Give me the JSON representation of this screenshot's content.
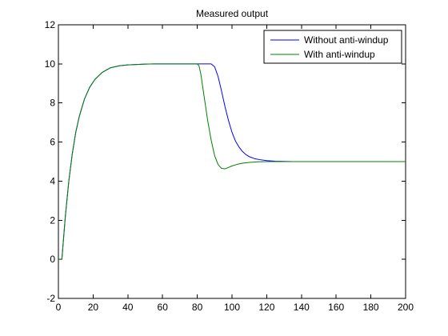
{
  "chart_data": {
    "type": "line",
    "title": "Measured output",
    "xlabel": "",
    "ylabel": "",
    "xlim": [
      0,
      200
    ],
    "ylim": [
      -2,
      12
    ],
    "xticks": [
      0,
      20,
      40,
      60,
      80,
      100,
      120,
      140,
      160,
      180,
      200
    ],
    "yticks": [
      -2,
      0,
      2,
      4,
      6,
      8,
      10,
      12
    ],
    "grid": false,
    "legend_position": "top-right",
    "series": [
      {
        "name": "Without anti-windup",
        "color": "#0000ff",
        "x": [
          0,
          2,
          4,
          6,
          8,
          10,
          12,
          15,
          18,
          21,
          25,
          30,
          35,
          40,
          45,
          50,
          55,
          60,
          65,
          70,
          75,
          80,
          85,
          88,
          90,
          92,
          94,
          96,
          98,
          100,
          102,
          104,
          106,
          108,
          110,
          113,
          116,
          120,
          125,
          130,
          135,
          140,
          150,
          160,
          170,
          180,
          190,
          200
        ],
        "y": [
          0,
          0,
          2.2,
          4.0,
          5.4,
          6.5,
          7.3,
          8.2,
          8.8,
          9.2,
          9.55,
          9.8,
          9.9,
          9.95,
          9.97,
          9.99,
          10.0,
          10.0,
          10.0,
          10.0,
          10.0,
          10.0,
          10.0,
          10.0,
          9.85,
          9.35,
          8.6,
          7.8,
          7.1,
          6.5,
          6.05,
          5.75,
          5.52,
          5.36,
          5.25,
          5.15,
          5.1,
          5.05,
          5.02,
          5.01,
          5.0,
          5.0,
          5.0,
          5.0,
          5.0,
          5.0,
          5.0,
          5.0
        ]
      },
      {
        "name": "With anti-windup",
        "color": "#008000",
        "x": [
          0,
          2,
          4,
          6,
          8,
          10,
          12,
          15,
          18,
          21,
          25,
          30,
          35,
          40,
          45,
          50,
          55,
          60,
          65,
          70,
          75,
          80,
          81,
          82,
          84,
          86,
          88,
          90,
          92,
          94,
          96,
          98,
          100,
          103,
          106,
          110,
          115,
          120,
          125,
          130,
          140,
          150,
          160,
          170,
          180,
          190,
          200
        ],
        "y": [
          0,
          0,
          2.2,
          4.0,
          5.4,
          6.5,
          7.3,
          8.2,
          8.8,
          9.2,
          9.55,
          9.8,
          9.9,
          9.95,
          9.97,
          9.99,
          10.0,
          10.0,
          10.0,
          10.0,
          10.0,
          10.0,
          9.9,
          9.5,
          8.3,
          7.1,
          6.1,
          5.3,
          4.85,
          4.65,
          4.63,
          4.7,
          4.78,
          4.86,
          4.92,
          4.96,
          4.99,
          5.0,
          5.0,
          5.0,
          5.0,
          5.0,
          5.0,
          5.0,
          5.0,
          5.0,
          5.0
        ]
      }
    ]
  }
}
